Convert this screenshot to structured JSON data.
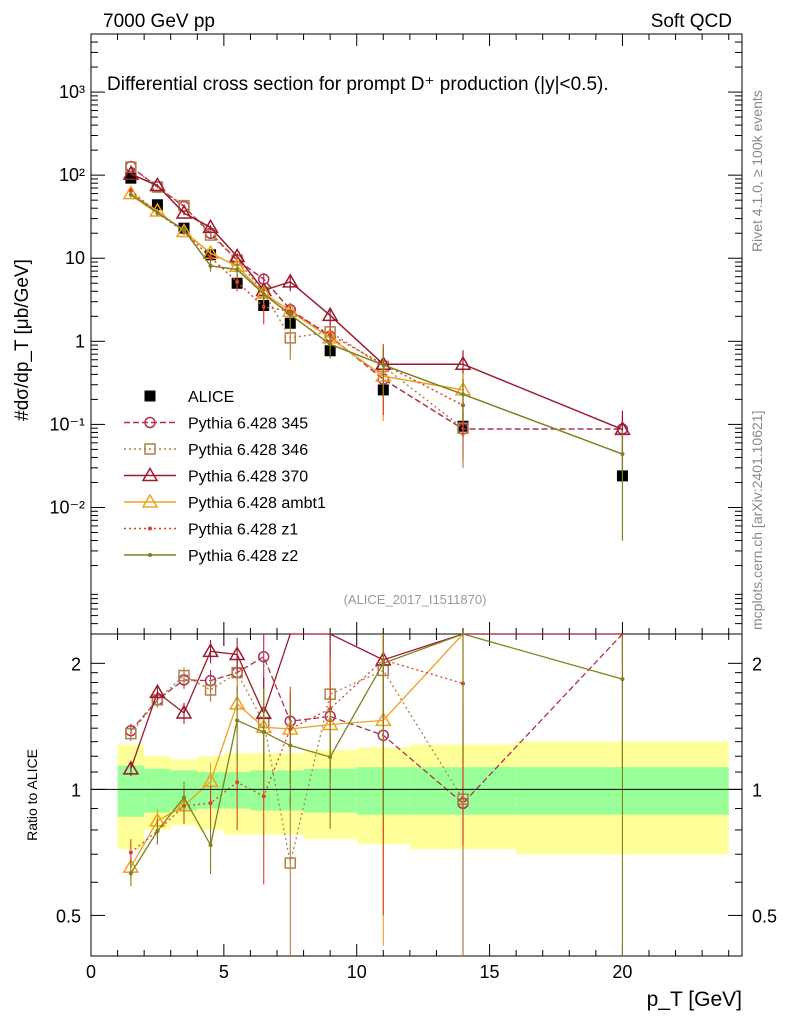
{
  "header": {
    "left": "7000 GeV pp",
    "right": "Soft QCD"
  },
  "side": {
    "rivet": "Rivet 4.1.0, ≥ 100k events",
    "mcplots": "mcplots.cern.ch [arXiv:2401.10621]"
  },
  "chart_data": {
    "type": "line",
    "title": "Differential cross section for prompt D⁺ production (|y|<0.5).",
    "title_sup": "+",
    "analysis_id": "(ALICE_2017_I1511870)",
    "ylabel_main": "#dσ/dp_T [μb/GeV]",
    "ylabel_ratio": "Ratio to ALICE",
    "xlabel": "p_T [GeV]",
    "x_range": [
      0,
      24.5
    ],
    "y_range_main": [
      0.0003,
      5000
    ],
    "y_scale_main": "log",
    "y_range_ratio": [
      0.4,
      2.35
    ],
    "y_scale_ratio": "log",
    "x_ticks": [
      "0",
      "5",
      "10",
      "15",
      "20"
    ],
    "y_ticks_main": [
      "10⁻²",
      "10⁻¹",
      "1",
      "10",
      "10²",
      "10³"
    ],
    "y_ticks_ratio": [
      "0.5",
      "1",
      "2"
    ],
    "bins": [
      [
        1,
        2
      ],
      [
        2,
        3
      ],
      [
        3,
        4
      ],
      [
        4,
        5
      ],
      [
        5,
        6
      ],
      [
        6,
        7
      ],
      [
        7,
        8
      ],
      [
        8,
        10
      ],
      [
        10,
        12
      ],
      [
        12,
        16
      ],
      [
        16,
        24
      ]
    ],
    "x_centers": [
      1.5,
      2.5,
      3.5,
      4.5,
      5.5,
      6.5,
      7.5,
      9,
      11,
      14,
      20
    ],
    "series": [
      {
        "name": "ALICE",
        "color": "#000000",
        "marker": "square-filled",
        "dash": "",
        "values": [
          92,
          44,
          23,
          11,
          5.0,
          2.7,
          1.65,
          0.77,
          0.26,
          0.095,
          0.024
        ],
        "ratio_band_inner": [
          0.14,
          0.12,
          0.11,
          0.1,
          0.1,
          0.11,
          0.11,
          0.12,
          0.13,
          0.13,
          0.13
        ],
        "ratio_band_outer": [
          0.28,
          0.2,
          0.18,
          0.2,
          0.22,
          0.22,
          0.22,
          0.24,
          0.26,
          0.28,
          0.3
        ]
      },
      {
        "name": "Pythia 6.428 345",
        "color": "#b03050",
        "marker": "circle-open",
        "dash": "6,3",
        "values": [
          127,
          72,
          42,
          20,
          9.5,
          5.6,
          2.4,
          1.15,
          0.35,
          0.088,
          0.088
        ],
        "errors": [
          5,
          3,
          2,
          1.2,
          1,
          1,
          0.4,
          0.3,
          0.1,
          0.05,
          0.04
        ]
      },
      {
        "name": "Pythia 6.428 346",
        "color": "#b0804a",
        "marker": "square-open",
        "dash": "2,3",
        "values": [
          125,
          72,
          43,
          19,
          9.5,
          3.9,
          1.1,
          1.3,
          0.5,
          0.09,
          0.0
        ],
        "errors": [
          5,
          3,
          2,
          1.2,
          1,
          0.8,
          0.5,
          0.4,
          0.2,
          0.06,
          0
        ]
      },
      {
        "name": "Pythia 6.428 370",
        "color": "#9b1a2e",
        "marker": "triangle-open",
        "dash": "",
        "values": [
          103,
          75,
          35,
          23.5,
          10.5,
          4.1,
          5.2,
          2.05,
          0.53,
          0.53,
          0.087
        ],
        "errors": [
          4,
          3,
          2,
          1.5,
          1,
          0.9,
          1.2,
          0.5,
          0.3,
          0.25,
          0.06
        ]
      },
      {
        "name": "Pythia 6.428 ambt1",
        "color": "#f0a020",
        "marker": "triangle-open",
        "dash": "",
        "values": [
          60,
          37,
          21,
          11.5,
          8.0,
          3.8,
          2.3,
          1.1,
          0.38,
          0.26,
          0.0
        ],
        "errors": [
          4,
          2.5,
          2,
          1.2,
          1.2,
          0.9,
          0.5,
          0.3,
          0.27,
          0.15,
          0
        ]
      },
      {
        "name": "Pythia 6.428 z1",
        "color": "#e04020",
        "marker": "dot",
        "dash": "2,3",
        "values": [
          65,
          35,
          21,
          10.2,
          5.2,
          2.6,
          2.3,
          1.2,
          0.53,
          0.17,
          0.0
        ],
        "errors": [
          5,
          2.5,
          2,
          1,
          1.2,
          1,
          0.6,
          0.4,
          0.4,
          0.1,
          0
        ]
      },
      {
        "name": "Pythia 6.428 z2",
        "color": "#808020",
        "marker": "dot",
        "dash": "",
        "values": [
          58,
          35,
          22,
          8.1,
          7.3,
          3.7,
          2.1,
          0.92,
          0.52,
          0.23,
          0.044
        ],
        "errors": [
          4,
          2.5,
          2,
          1.2,
          1.5,
          1,
          0.6,
          0.3,
          0.3,
          0.12,
          0.04
        ]
      }
    ]
  }
}
